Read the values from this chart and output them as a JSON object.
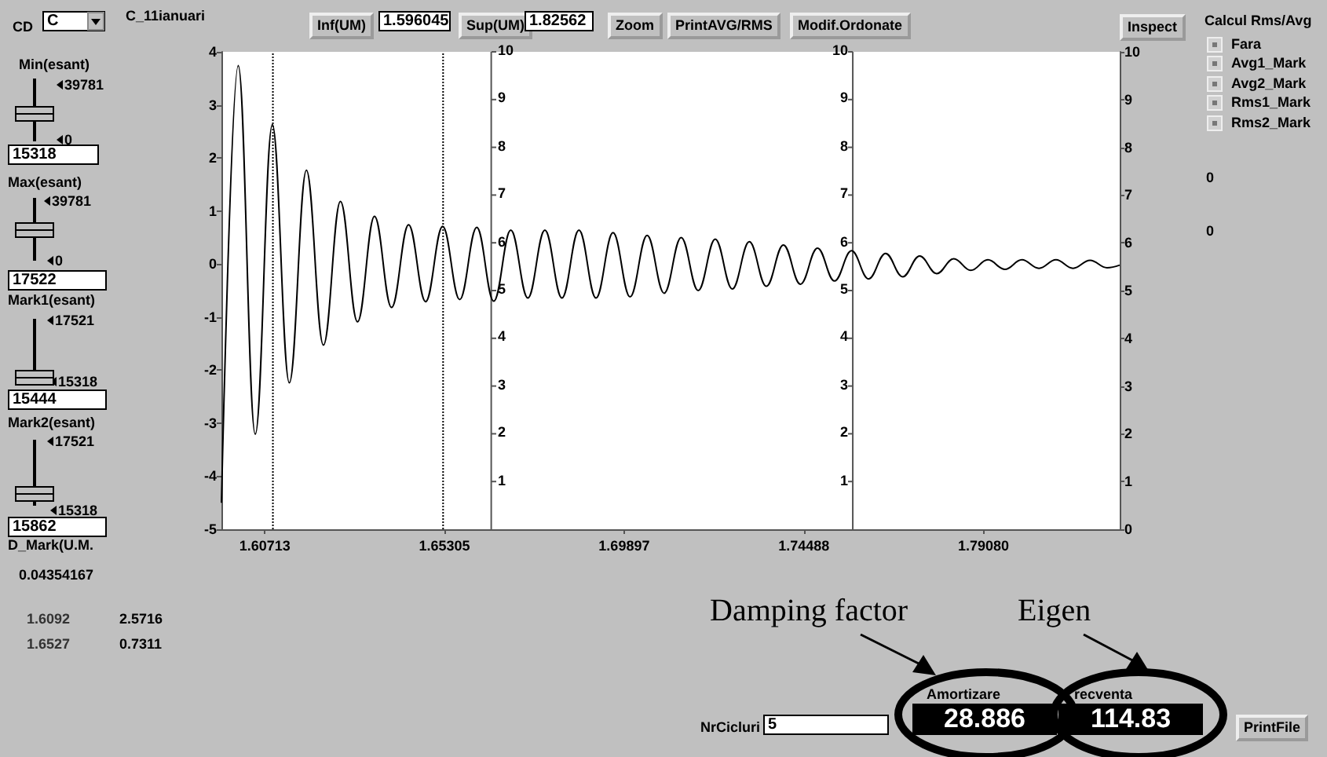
{
  "chart_data": {
    "type": "line",
    "marker": "none",
    "line_style": "solid",
    "x": [
      1.596045,
      1.60034,
      1.60469,
      1.60905,
      1.6134,
      1.61776,
      1.62211,
      1.62646,
      1.63082,
      1.63517,
      1.63953,
      1.64388,
      1.64823,
      1.65259,
      1.65694,
      1.6613,
      1.66565,
      1.67,
      1.67436,
      1.67871,
      1.68307,
      1.68742,
      1.69177,
      1.69613,
      1.70048,
      1.70484,
      1.70919,
      1.71354,
      1.7179,
      1.72225,
      1.72661,
      1.73096,
      1.73531,
      1.73967,
      1.74402,
      1.74838,
      1.75273,
      1.75708,
      1.76144,
      1.76579,
      1.77015,
      1.7745,
      1.77885,
      1.78321,
      1.78756,
      1.79192,
      1.79627,
      1.80062,
      1.80498,
      1.80933,
      1.81369,
      1.81804,
      1.82239,
      1.82562
    ],
    "series": [
      {
        "color": "#000000",
        "values": [
          -4.5,
          3.74,
          -3.21,
          2.63,
          -2.24,
          1.77,
          -1.53,
          1.18,
          -1.09,
          0.9,
          -0.82,
          0.74,
          -0.71,
          0.71,
          -0.67,
          0.69,
          -0.7,
          0.64,
          -0.64,
          0.64,
          -0.64,
          0.64,
          -0.64,
          0.59,
          -0.62,
          0.54,
          -0.55,
          0.5,
          -0.5,
          0.47,
          -0.47,
          0.42,
          -0.42,
          0.36,
          -0.38,
          0.3,
          -0.32,
          0.25,
          -0.28,
          0.2,
          -0.24,
          0.15,
          -0.18,
          0.1,
          -0.12,
          0.08,
          -0.1,
          0.08,
          -0.08,
          0.08,
          -0.08,
          0.07,
          -0.07,
          -0.02
        ]
      }
    ],
    "xlim": [
      1.596045,
      1.82562
    ],
    "xticks": [
      1.60713,
      1.65305,
      1.69897,
      1.74488,
      {
        "value": 1.7908,
        "label": "1.79080"
      }
    ],
    "ylim": [
      -5,
      4
    ],
    "yticks": [
      -5,
      -4,
      -3,
      -2,
      -1,
      0,
      1,
      2,
      3,
      4
    ],
    "y2lim": [
      0,
      10
    ],
    "y2ticks": [
      0,
      1,
      2,
      3,
      4,
      5,
      6,
      7,
      8,
      9,
      10
    ],
    "ref_lines": [
      {
        "axis": "x",
        "value": 1.6092,
        "line_style": "dotted"
      },
      {
        "axis": "x",
        "value": 1.6527,
        "line_style": "dotted"
      },
      {
        "axis": "x",
        "value": 1.665,
        "color": "#555555"
      },
      {
        "axis": "x",
        "value": 1.7574,
        "color": "#555555"
      }
    ],
    "annotations": [
      "CD",
      "C",
      "C_11ianuari",
      "Inf(UM)",
      "1.596045",
      "Sup(UM)",
      "1.82562",
      "Zoom",
      "PrintAVG/RMS",
      "Modif.Ordonate",
      "Inspect",
      "Calcul Rms/Avg",
      "Fara",
      "Avg1_Mark",
      "Avg2_Mark",
      "Rms1_Mark",
      "Rms2_Mark",
      "0",
      "0",
      "Min(esant)",
      "39781",
      "0",
      "15318",
      "Max(esant)",
      "39781",
      "0",
      "17522",
      "Mark1(esant)",
      "17521",
      "15318",
      "15444",
      "Mark2(esant)",
      "17521",
      "15318",
      "15862",
      "D_Mark(U.M.",
      "0.04354167",
      "1.6092",
      "2.5716",
      "1.6527",
      "0.7311",
      "Damping factor",
      "Eigen",
      "Amortizare",
      "recventa",
      "28.886",
      "114.83",
      "NrCicluri",
      "5",
      "PrintFile",
      "10",
      "9",
      "8",
      "7",
      "6",
      "5",
      "4",
      "3",
      "2",
      "1",
      "10",
      "9",
      "8",
      "7",
      "6",
      "5",
      "4",
      "3",
      "2",
      "1"
    ]
  }
}
